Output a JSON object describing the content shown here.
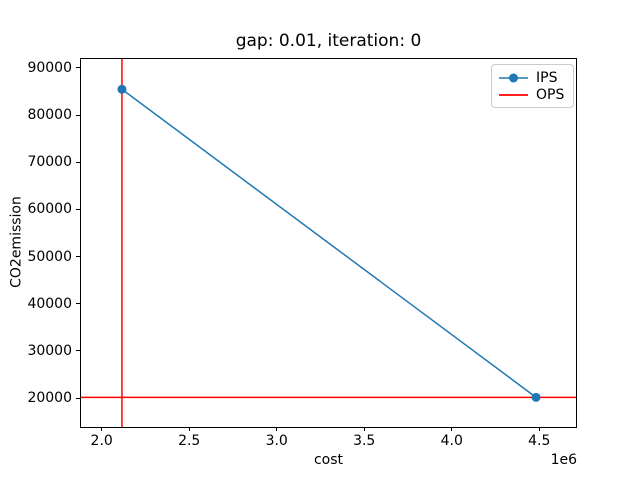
{
  "title": "gap: 0.01, iteration: 0",
  "chart_data": {
    "type": "line",
    "title": "gap: 0.01, iteration: 0",
    "xlabel": "cost",
    "ylabel": "CO2emission",
    "x_offset_label": "1e6",
    "grid": false,
    "xlim": [
      1876000,
      4710000
    ],
    "ylim": [
      13850,
      92120
    ],
    "x_ticks": {
      "values": [
        2000000,
        2500000,
        3000000,
        3500000,
        4000000,
        4500000
      ],
      "labels": [
        "2.0",
        "2.5",
        "3.0",
        "3.5",
        "4.0",
        "4.5"
      ]
    },
    "y_ticks": {
      "values": [
        20000,
        30000,
        40000,
        50000,
        60000,
        70000,
        80000,
        90000
      ],
      "labels": [
        "20000",
        "30000",
        "40000",
        "50000",
        "60000",
        "70000",
        "80000",
        "90000"
      ]
    },
    "series": [
      {
        "name": "IPS",
        "style": "line-marker",
        "color": "#1f77b4",
        "points": [
          [
            2110000,
            85700
          ],
          [
            4476000,
            20350
          ]
        ]
      },
      {
        "name": "OPS",
        "style": "reference-lines",
        "color": "#ff0000",
        "vline_x": 2110000,
        "hline_y": 20350
      }
    ],
    "legend": {
      "position": "upper right",
      "entries": [
        {
          "label": "IPS",
          "color": "#1f77b4",
          "marker": "circle"
        },
        {
          "label": "OPS",
          "color": "#ff0000",
          "marker": "none"
        }
      ]
    }
  }
}
